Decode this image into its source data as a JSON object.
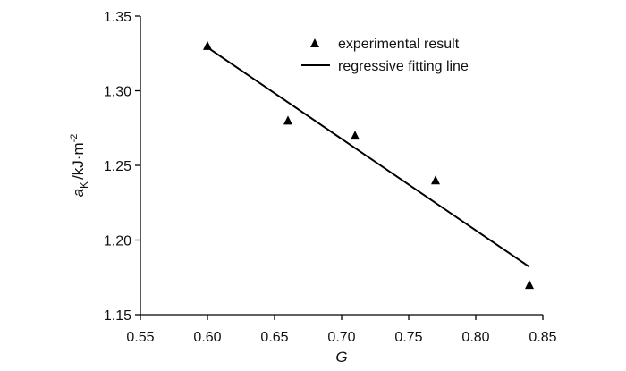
{
  "chart_data": {
    "type": "scatter",
    "title": "",
    "xlabel": "G",
    "ylabel": {
      "symbol": "a",
      "subscript": "K",
      "unit": "/kJ·m",
      "exponent": "-2"
    },
    "xlim": [
      0.55,
      0.85
    ],
    "ylim": [
      1.15,
      1.35
    ],
    "x_ticks": [
      "0.55",
      "0.60",
      "0.65",
      "0.70",
      "0.75",
      "0.80",
      "0.85"
    ],
    "y_ticks": [
      "1.15",
      "1.20",
      "1.25",
      "1.30",
      "1.35"
    ],
    "grid": false,
    "legend_position": "top-right",
    "series": [
      {
        "name": "experimental result",
        "marker": "triangle",
        "x": [
          0.6,
          0.66,
          0.71,
          0.77,
          0.84
        ],
        "y": [
          1.33,
          1.28,
          1.27,
          1.24,
          1.17
        ]
      },
      {
        "name": "regressive fitting line",
        "marker": "line",
        "x": [
          0.6,
          0.84
        ],
        "y": [
          1.329,
          1.182
        ]
      }
    ],
    "colors": {
      "marks": "#000000",
      "axes": "#000000"
    }
  }
}
